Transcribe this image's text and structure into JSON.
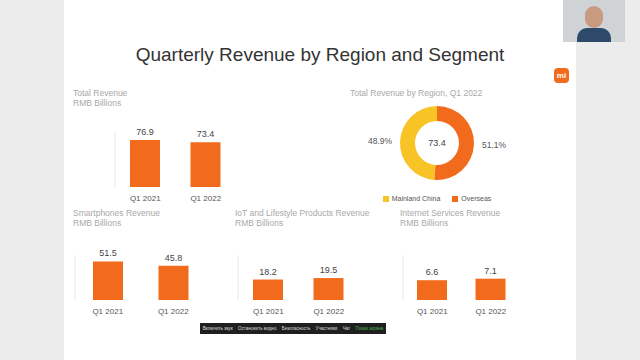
{
  "title": "Quarterly Revenue by Region and Segment",
  "logo": "mi",
  "chart_data": [
    {
      "type": "bar",
      "title": "Total Revenue",
      "subtitle": "RMB Billions",
      "categories": [
        "Q1 2021",
        "Q1 2022"
      ],
      "values": [
        76.9,
        73.4
      ],
      "color": "#f26b1d",
      "ylim": [
        0,
        90
      ],
      "tick_labels": "x",
      "data_labels": true
    },
    {
      "type": "pie",
      "title": "Total Revenue by Region, Q1 2022",
      "total": 73.4,
      "categories": [
        "Mainland China",
        "Overseas"
      ],
      "values": [
        48.9,
        51.1
      ],
      "value_labels": [
        "48.9%",
        "51.1%"
      ],
      "colors": [
        "#f7c325",
        "#f26b1d"
      ],
      "legend": "bottom",
      "data_labels": true
    },
    {
      "type": "bar",
      "title": "Smartphones Revenue",
      "subtitle": "RMB Billions",
      "categories": [
        "Q1 2021",
        "Q1 2022"
      ],
      "values": [
        51.5,
        45.8
      ],
      "color": "#f26b1d",
      "ylim": [
        0,
        60
      ],
      "tick_labels": "x",
      "data_labels": true
    },
    {
      "type": "bar",
      "title": "IoT and Lifestyle Products Revenue",
      "subtitle": "RMB Billions",
      "categories": [
        "Q1 2021",
        "Q1 2022"
      ],
      "values": [
        18.2,
        19.5
      ],
      "color": "#f26b1d",
      "ylim": [
        0,
        40
      ],
      "tick_labels": "x",
      "data_labels": true
    },
    {
      "type": "bar",
      "title": "Internet Services Revenue",
      "subtitle": "RMB Billions",
      "categories": [
        "Q1 2021",
        "Q1 2022"
      ],
      "values": [
        6.6,
        7.1
      ],
      "color": "#f26b1d",
      "ylim": [
        0,
        15
      ],
      "tick_labels": "x",
      "data_labels": true
    }
  ],
  "toolbar": [
    "Включить звук",
    "Остановить видео",
    "Безопасность",
    "Участники",
    "Чат",
    "Показ экрана"
  ]
}
